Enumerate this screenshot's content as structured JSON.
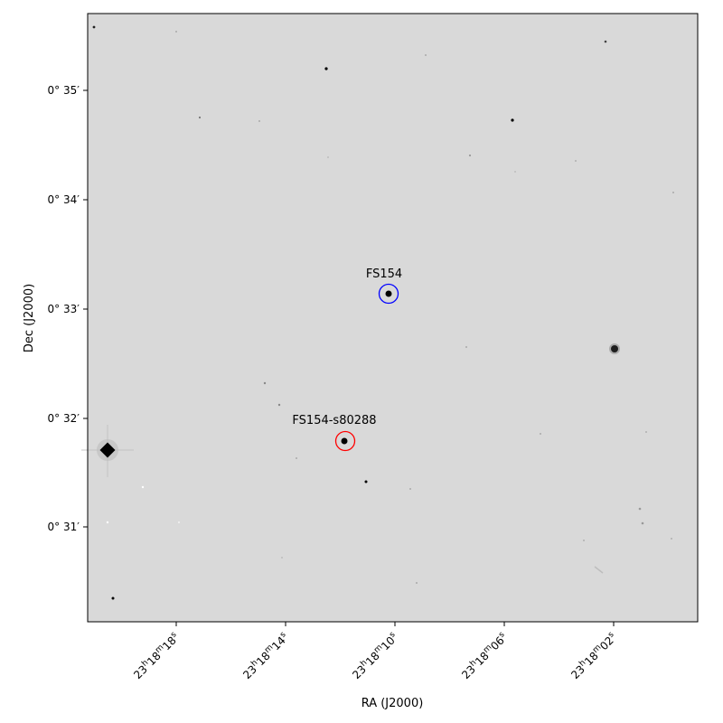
{
  "axes": {
    "xlabel": "RA (J2000)",
    "ylabel": "Dec (J2000)"
  },
  "ra_ticks": [
    {
      "h": "23",
      "m": "18",
      "s": "18"
    },
    {
      "h": "23",
      "m": "18",
      "s": "14"
    },
    {
      "h": "23",
      "m": "18",
      "s": "10"
    },
    {
      "h": "23",
      "m": "18",
      "s": "06"
    },
    {
      "h": "23",
      "m": "18",
      "s": "02"
    }
  ],
  "dec_ticks": [
    "0° 35′",
    "0° 34′",
    "0° 33′",
    "0° 32′",
    "0° 31′"
  ],
  "targets": [
    {
      "label": "FS154",
      "color": "#0000ff"
    },
    {
      "label": "FS154-s80288",
      "color": "#ff0000"
    }
  ],
  "colors": {
    "sky_background": "#d9d9d9",
    "frame": "#000000"
  }
}
